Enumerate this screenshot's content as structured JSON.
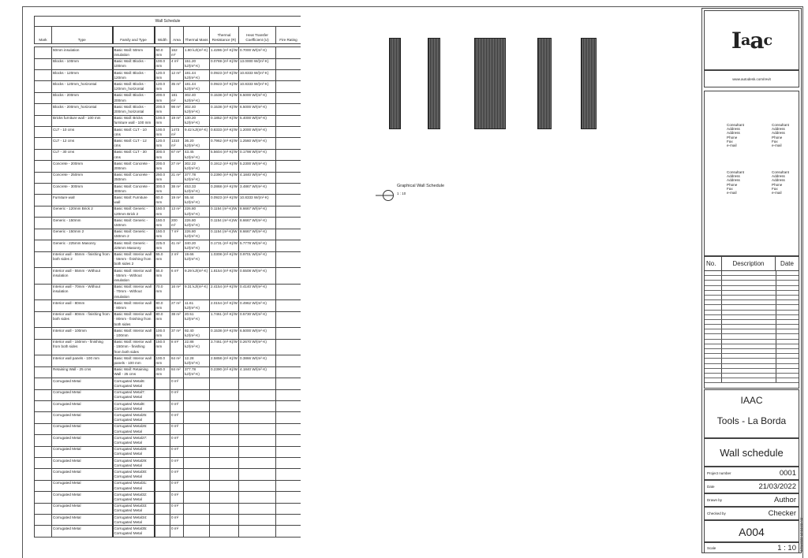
{
  "schedule": {
    "title": "Wall Schedule",
    "headers": [
      "Mark",
      "Type",
      "Family and Type",
      "Width",
      "Area",
      "Thermal Mass",
      "Thermal Resistance (R)",
      "Heat Transfer Coefficient (U)",
      "Fire Rating"
    ],
    "rows": [
      [
        "",
        "50mm insulation",
        "Basic Wall: 50mm insulation",
        "50.0 mm",
        "162 m²",
        "1.80 kJ/(m²·K)",
        "1.4286 (m²·K)/W",
        "0.7000 W/(m²·K)",
        ""
      ],
      [
        "",
        "Blocks - 100mm",
        "Basic Wall: Blocks - 100mm",
        "100.0 mm",
        "4 m²",
        "151.20 kJ/(m²·K)",
        "0.0769 (m²·K)/W",
        "13.0000 W/(m²·K)",
        ""
      ],
      [
        "",
        "Blocks - 120mm",
        "Basic Wall: Blocks - 120mm",
        "120.0 mm",
        "12 m²",
        "181.44 kJ/(m²·K)",
        "0.0923 (m²·K)/W",
        "10.8333 W/(m²·K)",
        ""
      ],
      [
        "",
        "Blocks - 120mm_horizontal",
        "Basic Wall: Blocks - 120mm_horizontal",
        "120.0 mm",
        "35 m²",
        "181.44 kJ/(m²·K)",
        "0.0923 (m²·K)/W",
        "10.8333 W/(m²·K)",
        ""
      ],
      [
        "",
        "Blocks - 200mm",
        "Basic Wall: Blocks - 200mm",
        "200.0 mm",
        "181 m²",
        "302.40 kJ/(m²·K)",
        "0.1538 (m²·K)/W",
        "6.5000 W/(m²·K)",
        ""
      ],
      [
        "",
        "Blocks - 200mm_horizontal",
        "Basic Wall: Blocks - 200mm_horizontal",
        "200.0 mm",
        "98 m²",
        "302.40 kJ/(m²·K)",
        "0.1538 (m²·K)/W",
        "6.5000 W/(m²·K)",
        ""
      ],
      [
        "",
        "Bricks furniture wall - 100 mm",
        "Basic Wall: Bricks furniture wall - 100 mm",
        "100.0 mm",
        "19 m²",
        "130.20 kJ/(m²·K)",
        "0.1852 (m²·K)/W",
        "5.4000 W/(m²·K)",
        ""
      ],
      [
        "",
        "CLT - 10 cms",
        "Basic Wall: CLT - 10 cms",
        "100.0 mm",
        "1473 m²",
        "9.42 kJ/(m²·K)",
        "0.8333 (m²·K)/W",
        "1.2000 W/(m²·K)",
        ""
      ],
      [
        "",
        "CLT - 12 cms",
        "Basic Wall: CLT - 12 cms",
        "120.0 mm",
        "1310 m²",
        "36.20 kJ/(m²·K)",
        "0.7962 (m²·K)/W",
        "1.2560 W/(m²·K)",
        ""
      ],
      [
        "",
        "CLT - 30 cms",
        "Basic Wall: CLT - 30 cms",
        "300.0 mm",
        "67 m²",
        "43.45 kJ/(m²·K)",
        "5.5604 (m²·K)/W",
        "0.1798 W/(m²·K)",
        ""
      ],
      [
        "",
        "Concrete - 200mm",
        "Basic Wall: Concrete - 200mm",
        "200.0 mm",
        "27 m²",
        "302.22 kJ/(m²·K)",
        "0.1912 (m²·K)/W",
        "5.2300 W/(m²·K)",
        ""
      ],
      [
        "",
        "Concrete - 250mm",
        "Basic Wall: Concrete - 250mm",
        "250.0 mm",
        "21 m²",
        "377.78 kJ/(m²·K)",
        "0.2390 (m²·K)/W",
        "4.1840 W/(m²·K)",
        ""
      ],
      [
        "",
        "Concrete - 300mm",
        "Basic Wall: Concrete - 300mm",
        "300.0 mm",
        "38 m²",
        "453.33 kJ/(m²·K)",
        "0.2868 (m²·K)/W",
        "3.4867 W/(m²·K)",
        ""
      ],
      [
        "",
        "Furniture wall",
        "Basic Wall: Furniture wall",
        "60.0 mm",
        "19 m²",
        "55.44 kJ/(m²·K)",
        "0.0923 (m²·K)/W",
        "10.8333 W/(m²·K)",
        ""
      ],
      [
        "",
        "Generic - 120mm Brick 2",
        "Basic Wall: Generic - 120mm Brick 2",
        "150.0 mm",
        "13 m²",
        "226.80 kJ/(m²·K)",
        "0.1154 (m²·K)/W",
        "8.6667 W/(m²·K)",
        ""
      ],
      [
        "",
        "Generic - 150mm",
        "Basic Wall: Generic - 150mm",
        "150.0 mm",
        "200 m²",
        "226.80 kJ/(m²·K)",
        "0.1154 (m²·K)/W",
        "8.6667 W/(m²·K)",
        ""
      ],
      [
        "",
        "Generic - 150mm 2",
        "Basic Wall: Generic - 150mm 2",
        "150.0 mm",
        "7 m²",
        "226.80 kJ/(m²·K)",
        "0.1154 (m²·K)/W",
        "8.6667 W/(m²·K)",
        ""
      ],
      [
        "",
        "Generic - 225mm Masonry",
        "Basic Wall: Generic - 225mm Masonry",
        "225.0 mm",
        "41 m²",
        "340.20 kJ/(m²·K)",
        "0.1731 (m²·K)/W",
        "5.7778 W/(m²·K)",
        ""
      ],
      [
        "",
        "Interior wall - 55mm - finishing from both sides 2",
        "Basic Wall: Interior wall - 55mm - finishing from both sides 2",
        "55.0 mm",
        "2 m²",
        "19.66 kJ/(m²·K)",
        "1.0308 (m²·K)/W",
        "0.9701 W/(m²·K)",
        ""
      ],
      [
        "",
        "Interior wall - 55mm - Without insulation",
        "Basic Wall: Interior wall - 55mm - Without insulation",
        "55.0 mm",
        "6 m²",
        "9.29 kJ/(m²·K)",
        "1.8154 (m²·K)/W",
        "0.5508 W/(m²·K)",
        ""
      ],
      [
        "",
        "Interior wall - 70mm - Without insulation",
        "Basic Wall: Interior wall - 70mm - Without insulation",
        "70.0 mm",
        "16 m²",
        "9.31 kJ/(m²·K)",
        "2.4154 (m²·K)/W",
        "0.4140 W/(m²·K)",
        ""
      ],
      [
        "",
        "Interior wall - 80mm",
        "Basic Wall: Interior wall - 80mm",
        "80.0 mm",
        "27 m²",
        "11.61 kJ/(m²·K)",
        "2.0154 (m²·K)/W",
        "0.4962 W/(m²·K)",
        ""
      ],
      [
        "",
        "Interior wall - 80mm - finishing from both sides",
        "Basic Wall: Interior wall - 80mm - finishing from both sides",
        "80.0 mm",
        "38 m²",
        "20.51 kJ/(m²·K)",
        "1.7461 (m²·K)/W",
        "0.5730 W/(m²·K)",
        ""
      ],
      [
        "",
        "Interior wall - 100mm",
        "Basic Wall: Interior wall - 100mm",
        "100.0 mm",
        "37 m²",
        "92.40 kJ/(m²·K)",
        "0.1538 (m²·K)/W",
        "6.5000 W/(m²·K)",
        ""
      ],
      [
        "",
        "Interior wall - 150mm - finishing from both sides",
        "Basic Wall: Interior wall - 150mm - finishing from both sides",
        "150.0 mm",
        "8 m²",
        "22.88 kJ/(m²·K)",
        "3.7461 (m²·K)/W",
        "0.2670 W/(m²·K)",
        ""
      ],
      [
        "",
        "Interior wall panels - 100 mm",
        "Basic Wall: Interior wall panels - 100 mm",
        "100.0 mm",
        "64 m²",
        "12.28 kJ/(m²·K)",
        "2.5858 (m²·K)/W",
        "0.3866 W/(m²·K)",
        ""
      ],
      [
        "",
        "Retaining Wall - 25 cms",
        "Basic Wall: Retaining Wall - 25 cms",
        "250.0 mm",
        "84 m²",
        "377.78 kJ/(m²·K)",
        "0.2390 (m²·K)/W",
        "4.1840 W/(m²·K)",
        ""
      ],
      [
        "",
        "Corrugated Metal",
        "Corrugated Metal6: Corrugated Metal",
        "",
        "0 m²",
        "",
        "",
        "",
        ""
      ],
      [
        "",
        "Corrugated Metal",
        "Corrugated Metal7: Corrugated Metal",
        "",
        "0 m²",
        "",
        "",
        "",
        ""
      ],
      [
        "",
        "Corrugated Metal",
        "Corrugated Metal8: Corrugated Metal",
        "",
        "0 m²",
        "",
        "",
        "",
        ""
      ],
      [
        "",
        "Corrugated Metal",
        "Corrugated Metal25: Corrugated Metal",
        "",
        "0 m²",
        "",
        "",
        "",
        ""
      ],
      [
        "",
        "Corrugated Metal",
        "Corrugated Metal26: Corrugated Metal",
        "",
        "0 m²",
        "",
        "",
        "",
        ""
      ],
      [
        "",
        "Corrugated Metal",
        "Corrugated Metal27: Corrugated Metal",
        "",
        "0 m²",
        "",
        "",
        "",
        ""
      ],
      [
        "",
        "Corrugated Metal",
        "Corrugated Metal28: Corrugated Metal",
        "",
        "0 m²",
        "",
        "",
        "",
        ""
      ],
      [
        "",
        "Corrugated Metal",
        "Corrugated Metal29: Corrugated Metal",
        "",
        "0 m²",
        "",
        "",
        "",
        ""
      ],
      [
        "",
        "Corrugated Metal",
        "Corrugated Metal30: Corrugated Metal",
        "",
        "0 m²",
        "",
        "",
        "",
        ""
      ],
      [
        "",
        "Corrugated Metal",
        "Corrugated Metal31: Corrugated Metal",
        "",
        "0 m²",
        "",
        "",
        "",
        ""
      ],
      [
        "",
        "Corrugated Metal",
        "Corrugated Metal32: Corrugated Metal",
        "",
        "0 m²",
        "",
        "",
        "",
        ""
      ],
      [
        "",
        "Corrugated Metal",
        "Corrugated Metal33: Corrugated Metal",
        "",
        "0 m²",
        "",
        "",
        "",
        ""
      ],
      [
        "",
        "Corrugated Metal",
        "Corrugated Metal34: Corrugated Metal",
        "",
        "0 m²",
        "",
        "",
        "",
        ""
      ],
      [
        "",
        "Corrugated Metal",
        "Corrugated Metal35: Corrugated Metal",
        "",
        "0 m²",
        "",
        "",
        "",
        ""
      ]
    ]
  },
  "graphical_view": {
    "title": "Graphical Wall Schedule",
    "scale": "1 : 10"
  },
  "titleblock": {
    "logo": "Iaac",
    "url": "www.autodesk.com/revit",
    "consultant_lines": [
      "Consultant",
      "Address",
      "Address",
      "Phone",
      "Fax",
      "e-mail"
    ],
    "revision_headers": [
      "No.",
      "Description",
      "Date"
    ],
    "client": "IAAC",
    "project": "Tools - La Borda",
    "sheet_name": "Wall schedule",
    "fields": [
      {
        "label": "Project number",
        "value": "0001"
      },
      {
        "label": "Date",
        "value": "21/03/2022"
      },
      {
        "label": "Drawn by",
        "value": "Author"
      },
      {
        "label": "Checked by",
        "value": "Checker"
      }
    ],
    "sheet_number": "A004",
    "scale_label": "Scale",
    "scale_value": "1 : 10",
    "timestamp": "3/21/2022 12:34:23 AM"
  }
}
